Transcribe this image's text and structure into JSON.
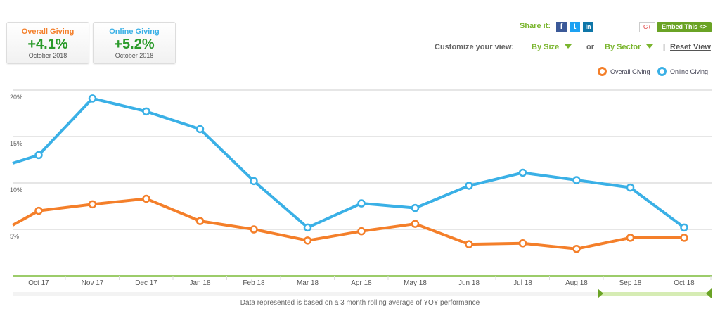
{
  "cards": [
    {
      "title": "Overall Giving",
      "value": "+4.1%",
      "date": "October 2018",
      "color": "#f47f2a"
    },
    {
      "title": "Online Giving",
      "value": "+5.2%",
      "date": "October 2018",
      "color": "#3ab0e6"
    }
  ],
  "share": {
    "label": "Share it:",
    "icons": [
      "facebook-icon",
      "twitter-icon",
      "linkedin-icon"
    ],
    "gplus": "G+",
    "embed": "Embed This <>"
  },
  "customize": {
    "label": "Customize your view:",
    "by_size": "By Size",
    "or": "or",
    "by_sector": "By Sector",
    "sep": "|",
    "reset": "Reset View"
  },
  "footer": "Data represented is based on a 3 month rolling average of YOY performance",
  "chart_data": {
    "type": "line",
    "categories": [
      "Oct 17",
      "Nov 17",
      "Dec 17",
      "Jan 18",
      "Feb 18",
      "Mar 18",
      "Apr 18",
      "May 18",
      "Jun 18",
      "Jul 18",
      "Aug 18",
      "Sep 18",
      "Oct 18"
    ],
    "yticks": [
      "5%",
      "10%",
      "15%",
      "20%"
    ],
    "ylim": [
      0,
      20
    ],
    "grid": true,
    "legend": "top-right",
    "series": [
      {
        "name": "Overall Giving",
        "color": "#f47f2a",
        "values": [
          7.0,
          7.7,
          8.3,
          5.9,
          5.0,
          3.8,
          4.8,
          5.6,
          3.4,
          3.5,
          2.9,
          4.1,
          4.1
        ]
      },
      {
        "name": "Online Giving",
        "color": "#3ab0e6",
        "values": [
          13.0,
          19.1,
          17.7,
          15.8,
          10.2,
          5.2,
          7.8,
          7.3,
          9.7,
          11.1,
          10.3,
          9.5,
          5.2
        ]
      }
    ]
  }
}
